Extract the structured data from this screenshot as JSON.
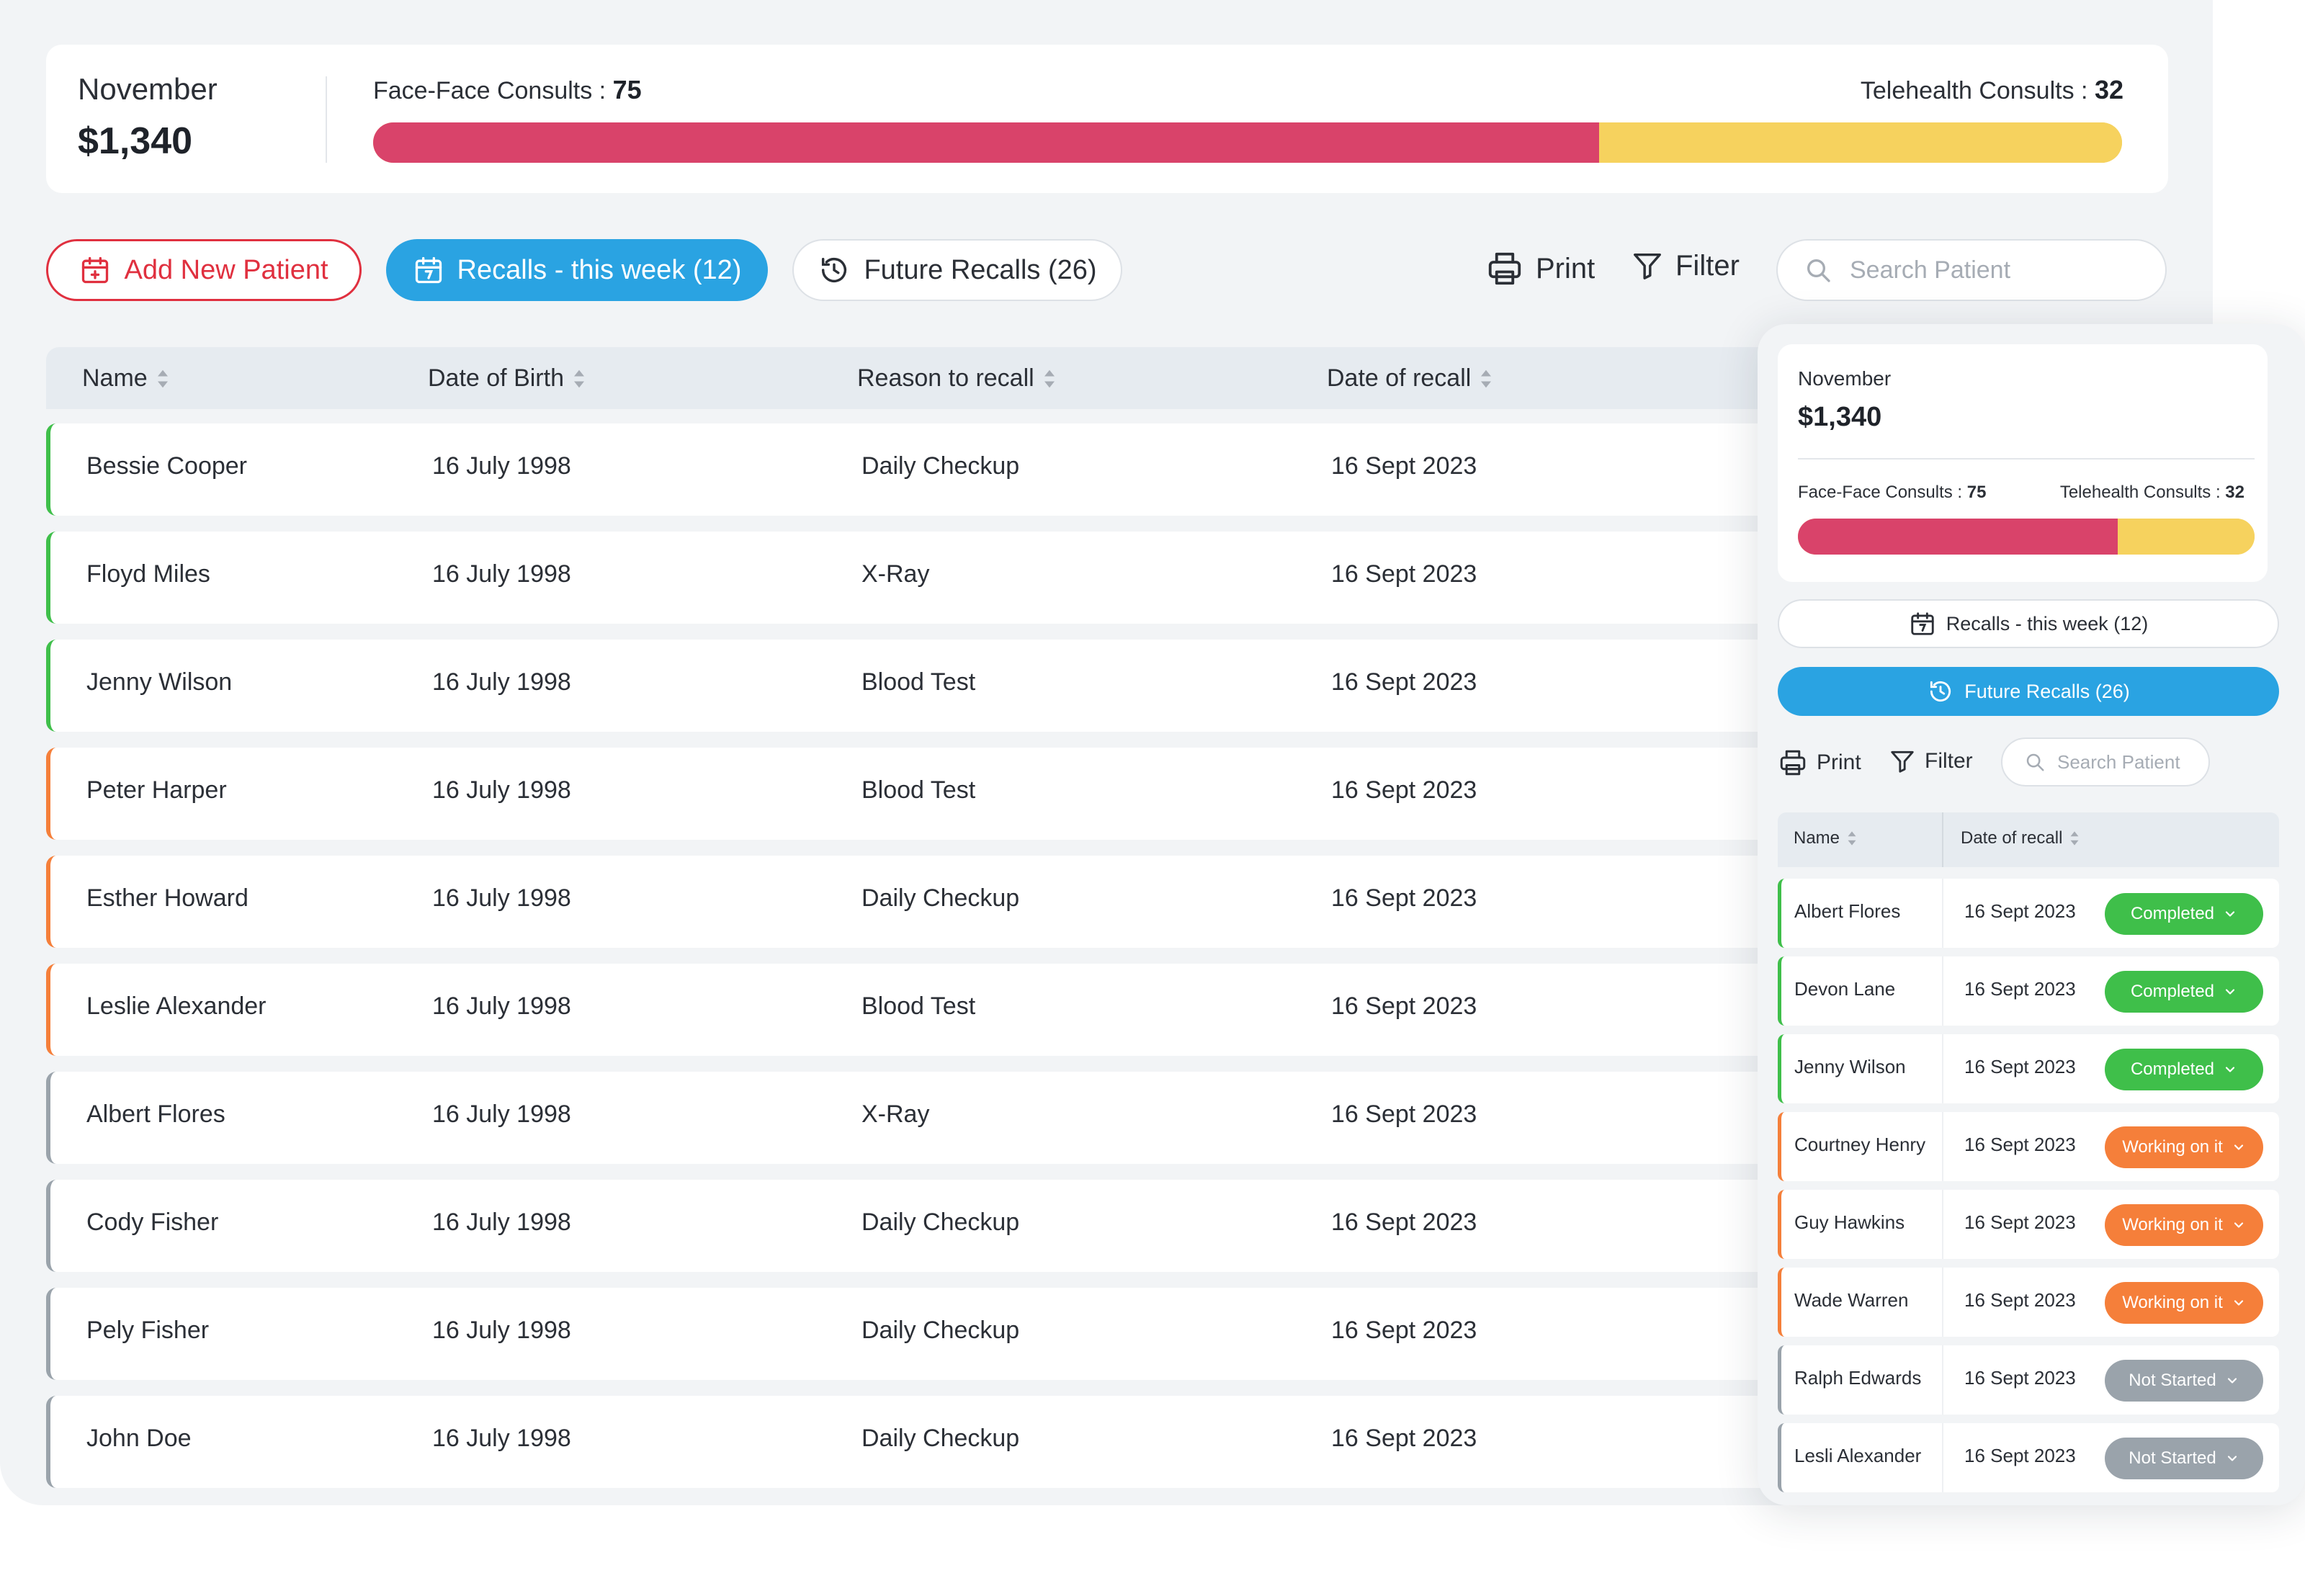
{
  "summary": {
    "month": "November",
    "amount": "$1,340",
    "face_label": "Face-Face Consults :",
    "face_count": "75",
    "tele_label": "Telehealth Consults :",
    "tele_count": "32",
    "face_value": 75,
    "tele_value": 32
  },
  "toolbar": {
    "add_patient": "Add New Patient",
    "recalls_week": "Recalls - this week (12)",
    "future_recalls": "Future Recalls (26)",
    "print": "Print",
    "filter": "Filter",
    "search_placeholder": "Search Patient"
  },
  "table": {
    "headers": [
      "Name",
      "Date of Birth",
      "Reason to recall",
      "Date of recall"
    ],
    "rows": [
      {
        "name": "Bessie Cooper",
        "dob": "16 July 1998",
        "reason": "Daily Checkup",
        "recall": "16 Sept 2023",
        "status_color": "#3fbf4a"
      },
      {
        "name": "Floyd Miles",
        "dob": "16 July 1998",
        "reason": "X-Ray",
        "recall": "16 Sept 2023",
        "status_color": "#3fbf4a"
      },
      {
        "name": "Jenny Wilson",
        "dob": "16 July 1998",
        "reason": "Blood Test",
        "recall": "16 Sept 2023",
        "status_color": "#3fbf4a"
      },
      {
        "name": "Peter Harper",
        "dob": "16 July 1998",
        "reason": "Blood Test",
        "recall": "16 Sept 2023",
        "status_color": "#f57f3a"
      },
      {
        "name": "Esther Howard",
        "dob": "16 July 1998",
        "reason": "Daily Checkup",
        "recall": "16 Sept 2023",
        "status_color": "#f57f3a"
      },
      {
        "name": "Leslie Alexander",
        "dob": "16 July 1998",
        "reason": "Blood Test",
        "recall": "16 Sept 2023",
        "status_color": "#f57f3a"
      },
      {
        "name": "Albert Flores",
        "dob": "16 July 1998",
        "reason": "X-Ray",
        "recall": "16 Sept 2023",
        "status_color": "#9aa3ab"
      },
      {
        "name": "Cody Fisher",
        "dob": "16 July 1998",
        "reason": "Daily Checkup",
        "recall": "16 Sept 2023",
        "status_color": "#9aa3ab"
      },
      {
        "name": "Pely Fisher",
        "dob": "16 July 1998",
        "reason": "Daily Checkup",
        "recall": "16 Sept 2023",
        "status_color": "#9aa3ab"
      },
      {
        "name": "John Doe",
        "dob": "16 July 1998",
        "reason": "Daily Checkup",
        "recall": "16 Sept 2023",
        "status_color": "#9aa3ab"
      }
    ]
  },
  "side": {
    "month": "November",
    "amount": "$1,340",
    "face_label": "Face-Face Consults :",
    "face_count": "75",
    "tele_label": "Telehealth Consults :",
    "tele_count": "32",
    "recalls_week": "Recalls - this week (12)",
    "future_recalls": "Future Recalls (26)",
    "print": "Print",
    "filter": "Filter",
    "search_placeholder": "Search Patient",
    "headers": [
      "Name",
      "Date of recall"
    ],
    "rows": [
      {
        "name": "Albert Flores",
        "date": "16 Sept 2023",
        "status": "Completed",
        "kind": "completed",
        "color": "#3fbf4a"
      },
      {
        "name": "Devon Lane",
        "date": "16 Sept 2023",
        "status": "Completed",
        "kind": "completed",
        "color": "#3fbf4a"
      },
      {
        "name": "Jenny Wilson",
        "date": "16 Sept 2023",
        "status": "Completed",
        "kind": "completed",
        "color": "#3fbf4a"
      },
      {
        "name": "Courtney Henry",
        "date": "16 Sept 2023",
        "status": "Working on it",
        "kind": "working",
        "color": "#f57f3a"
      },
      {
        "name": "Guy Hawkins",
        "date": "16 Sept 2023",
        "status": "Working on it",
        "kind": "working",
        "color": "#f57f3a"
      },
      {
        "name": "Wade Warren",
        "date": "16 Sept 2023",
        "status": "Working on it",
        "kind": "working",
        "color": "#f57f3a"
      },
      {
        "name": "Ralph Edwards",
        "date": "16 Sept 2023",
        "status": "Not Started",
        "kind": "notstarted",
        "color": "#9aa3ab"
      },
      {
        "name": "Lesli Alexander",
        "date": "16 Sept 2023",
        "status": "Not Started",
        "kind": "notstarted",
        "color": "#9aa3ab"
      }
    ]
  },
  "colors": {
    "face": "#d9436a",
    "tele": "#f6d25e",
    "primary": "#2aa3e2",
    "danger": "#e0303f"
  },
  "icons": [
    "calendar-plus-icon",
    "calendar-icon",
    "history-icon",
    "printer-icon",
    "filter-icon",
    "search-icon",
    "sort-icon",
    "chevron-down-icon"
  ]
}
